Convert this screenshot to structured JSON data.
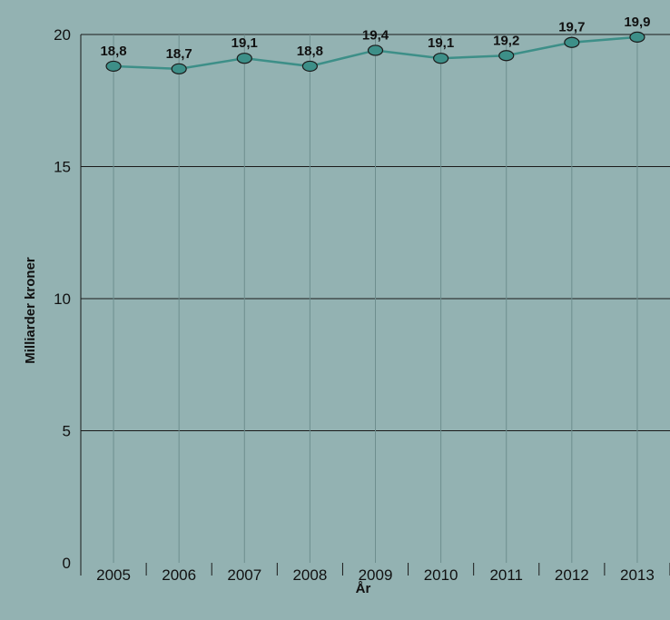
{
  "chart_data": {
    "type": "line",
    "title": "",
    "xlabel": "År",
    "ylabel": "Milliarder kroner",
    "ylim": [
      0,
      20
    ],
    "yticks": [
      "0",
      "5",
      "10",
      "15",
      "20"
    ],
    "grid": true,
    "categories": [
      "2005",
      "2006",
      "2007",
      "2008",
      "2009",
      "2010",
      "2011",
      "2012",
      "2013"
    ],
    "series": [
      {
        "values": [
          18.8,
          18.7,
          19.1,
          18.8,
          19.4,
          19.1,
          19.2,
          19.7,
          19.9
        ],
        "labels": [
          "18,8",
          "18,7",
          "19,1",
          "18,8",
          "19,4",
          "19,1",
          "19,2",
          "19,7",
          "19,9"
        ],
        "color": "#3d8f88"
      }
    ]
  }
}
